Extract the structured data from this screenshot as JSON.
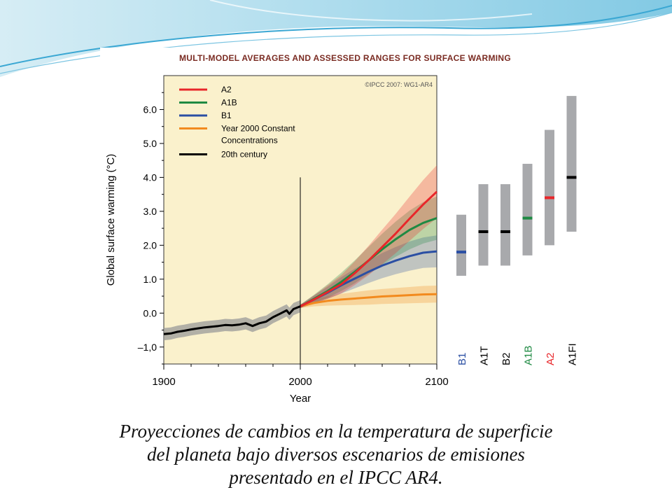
{
  "slide": {
    "caption_lines": [
      "Proyecciones de cambios en la temperatura de superficie",
      "del planeta bajo diversos escenarios de emisiones",
      "presentado en el IPCC AR4."
    ]
  },
  "colors": {
    "A2": "#e8262a",
    "A1B": "#1f8a43",
    "B1": "#2b4fa3",
    "constant": "#f28a1e",
    "century20": "#000000",
    "panel_bg": "#faf1cc",
    "bar_gray": "#a8a9ac",
    "title": "#7a2b22"
  },
  "chart_data": {
    "type": "line",
    "title": "MULTI-MODEL AVERAGES AND ASSESSED RANGES FOR SURFACE WARMING",
    "copyright": "©IPCC 2007: WG1-AR4",
    "xlabel": "Year",
    "ylabel": "Global surface warming (°C)",
    "xlim": [
      1900,
      2100
    ],
    "ylim": [
      -1.5,
      7.0
    ],
    "x_ticks": [
      "1900",
      "2000",
      "2100"
    ],
    "y_ticks": [
      "–1,0",
      "0.0",
      "1.0",
      "2.0",
      "3.0",
      "4.0",
      "5.0",
      "6.0"
    ],
    "y_tick_values": [
      -1,
      0,
      1,
      2,
      3,
      4,
      5,
      6
    ],
    "legend": [
      {
        "key": "A2",
        "label": "A2"
      },
      {
        "key": "A1B",
        "label": "A1B"
      },
      {
        "key": "B1",
        "label": "B1"
      },
      {
        "key": "constant",
        "label": "Year 2000 Constant Concentrations"
      },
      {
        "key": "century20",
        "label": "20th century"
      }
    ],
    "series": [
      {
        "name": "20th century",
        "key": "century20",
        "x": [
          1900,
          1905,
          1910,
          1915,
          1920,
          1925,
          1930,
          1935,
          1940,
          1945,
          1950,
          1955,
          1960,
          1965,
          1970,
          1975,
          1980,
          1985,
          1990,
          1992,
          1995,
          2000
        ],
        "y": [
          -0.62,
          -0.6,
          -0.55,
          -0.52,
          -0.48,
          -0.45,
          -0.42,
          -0.4,
          -0.38,
          -0.35,
          -0.36,
          -0.34,
          -0.3,
          -0.38,
          -0.3,
          -0.25,
          -0.12,
          -0.02,
          0.08,
          -0.02,
          0.12,
          0.2
        ],
        "band": 0.18
      },
      {
        "name": "Year 2000 Constant Concentrations",
        "key": "constant",
        "x": [
          2000,
          2010,
          2020,
          2030,
          2040,
          2050,
          2060,
          2070,
          2080,
          2090,
          2100
        ],
        "y": [
          0.2,
          0.3,
          0.36,
          0.4,
          0.43,
          0.46,
          0.49,
          0.51,
          0.53,
          0.55,
          0.56
        ],
        "band": [
          0.05,
          0.1,
          0.14,
          0.17,
          0.19,
          0.21,
          0.22,
          0.23,
          0.24,
          0.25,
          0.25
        ]
      },
      {
        "name": "B1",
        "key": "B1",
        "x": [
          2000,
          2010,
          2020,
          2030,
          2040,
          2050,
          2060,
          2070,
          2080,
          2090,
          2100
        ],
        "y": [
          0.2,
          0.4,
          0.6,
          0.82,
          1.02,
          1.22,
          1.4,
          1.55,
          1.68,
          1.78,
          1.82
        ],
        "band": [
          0.05,
          0.12,
          0.18,
          0.24,
          0.29,
          0.33,
          0.37,
          0.4,
          0.43,
          0.45,
          0.47
        ]
      },
      {
        "name": "A1B",
        "key": "A1B",
        "x": [
          2000,
          2010,
          2020,
          2030,
          2040,
          2050,
          2060,
          2070,
          2080,
          2090,
          2100
        ],
        "y": [
          0.2,
          0.42,
          0.65,
          0.92,
          1.22,
          1.55,
          1.88,
          2.18,
          2.45,
          2.66,
          2.8
        ],
        "band": [
          0.05,
          0.12,
          0.2,
          0.27,
          0.34,
          0.4,
          0.46,
          0.52,
          0.57,
          0.61,
          0.64
        ]
      },
      {
        "name": "A2",
        "key": "A2",
        "x": [
          2000,
          2010,
          2020,
          2030,
          2040,
          2050,
          2060,
          2070,
          2080,
          2090,
          2100
        ],
        "y": [
          0.2,
          0.4,
          0.62,
          0.85,
          1.18,
          1.55,
          1.95,
          2.35,
          2.78,
          3.2,
          3.58
        ],
        "band": [
          0.05,
          0.12,
          0.2,
          0.27,
          0.35,
          0.43,
          0.51,
          0.58,
          0.65,
          0.72,
          0.78
        ]
      }
    ],
    "vline_x": 2000,
    "vline_top": 4.0,
    "range_bars": [
      {
        "label": "B1",
        "low": 1.1,
        "high": 2.9,
        "best": 1.8,
        "mark": "B1",
        "label_color": "B1"
      },
      {
        "label": "A1T",
        "low": 1.4,
        "high": 3.8,
        "best": 2.4,
        "mark": "century20",
        "label_color": "century20"
      },
      {
        "label": "B2",
        "low": 1.4,
        "high": 3.8,
        "best": 2.4,
        "mark": "century20",
        "label_color": "century20"
      },
      {
        "label": "A1B",
        "low": 1.7,
        "high": 4.4,
        "best": 2.8,
        "mark": "A1B",
        "label_color": "A1B"
      },
      {
        "label": "A2",
        "low": 2.0,
        "high": 5.4,
        "best": 3.4,
        "mark": "A2",
        "label_color": "A2"
      },
      {
        "label": "A1FI",
        "low": 2.4,
        "high": 6.4,
        "best": 4.0,
        "mark": "century20",
        "label_color": "century20"
      }
    ]
  }
}
